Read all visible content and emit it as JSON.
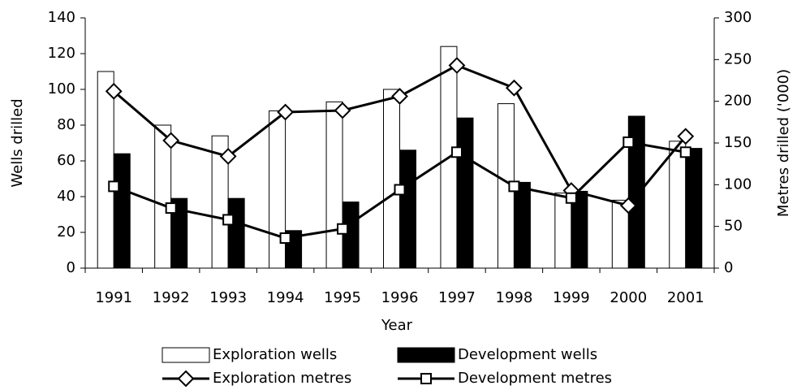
{
  "chart_data": {
    "type": "bar_line",
    "x_label": "Year",
    "y_label": "Wells drilled",
    "y2_label": "Metres drilled ('000)",
    "categories": [
      "1991",
      "1992",
      "1993",
      "1994",
      "1995",
      "1996",
      "1997",
      "1998",
      "1999",
      "2000",
      "2001"
    ],
    "series": [
      {
        "name": "Exploration wells",
        "type": "bar",
        "color": "#ffffff",
        "values": [
          110,
          80,
          74,
          88,
          93,
          100,
          124,
          92,
          42,
          38,
          71
        ]
      },
      {
        "name": "Development wells",
        "type": "bar",
        "color": "#000000",
        "values": [
          64,
          39,
          39,
          21,
          37,
          66,
          84,
          48,
          43,
          85,
          67
        ]
      },
      {
        "name": "Exploration metres",
        "type": "line",
        "marker": "diamond",
        "axis": "y2",
        "color": "#000000",
        "values": [
          212,
          153,
          134,
          187,
          189,
          206,
          243,
          216,
          93,
          75,
          158
        ]
      },
      {
        "name": "Development metres",
        "type": "line",
        "marker": "square",
        "axis": "y2",
        "color": "#000000",
        "values": [
          98,
          72,
          58,
          36,
          47,
          94,
          139,
          98,
          84,
          151,
          139
        ]
      }
    ],
    "ylim": [
      0,
      140
    ],
    "yticks": [
      0,
      20,
      40,
      60,
      80,
      100,
      120,
      140
    ],
    "y2lim": [
      0,
      300
    ],
    "y2ticks": [
      0,
      50,
      100,
      150,
      200,
      250,
      300
    ]
  }
}
